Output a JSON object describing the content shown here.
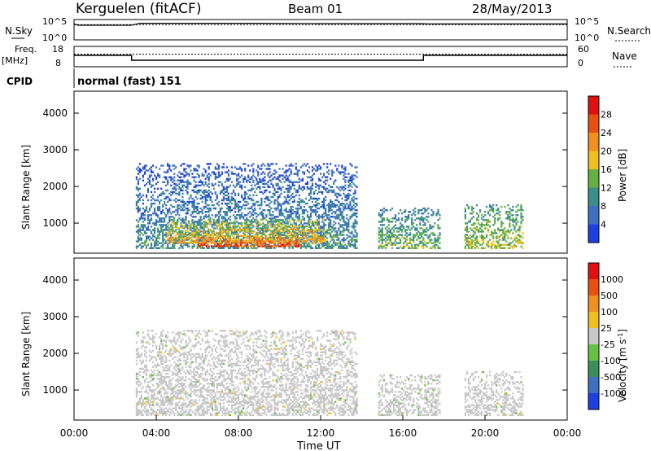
{
  "header": {
    "station": "Kerguelen (fitACF)",
    "beam": "Beam 01",
    "date": "28/May/2013"
  },
  "chart_data": [
    {
      "type": "line",
      "panel": "noise",
      "left_label": "N.Sky",
      "right_label": "N.Search",
      "left_ticks": [
        "10^5",
        "10^0"
      ],
      "right_ticks": [
        "10^5",
        "10^0"
      ],
      "x_hours": [
        0,
        0.2,
        2.8,
        3.2,
        9.0,
        12.0,
        16.9,
        17.2,
        24
      ],
      "n_sky_log10": [
        4.4,
        4.0,
        4.0,
        4.6,
        4.6,
        4.5,
        4.5,
        4.4,
        4.4
      ],
      "n_search_log10": [
        4.2,
        4.2,
        4.2,
        4.2,
        4.2,
        4.2,
        4.2,
        4.2,
        4.2
      ]
    },
    {
      "type": "line",
      "panel": "frequency",
      "left_label": "Freq.",
      "left_label_unit": "[MHz]",
      "right_label": "Nave",
      "left_ticks": [
        "18",
        "8"
      ],
      "right_ticks": [
        "60",
        "0"
      ],
      "freq_steps": [
        {
          "from_h": 0,
          "to_h": 2.8,
          "mhz": 14.0
        },
        {
          "from_h": 2.8,
          "to_h": 17.0,
          "mhz": 11.0
        },
        {
          "from_h": 17.0,
          "to_h": 24,
          "mhz": 14.0
        }
      ],
      "nave": 40,
      "cpid_label": "CPID",
      "cpid_text": "normal (fast) 151"
    },
    {
      "type": "heatmap",
      "panel": "power",
      "ylabel": "Slant Range [km]",
      "y_ticks": [
        "1000",
        "2000",
        "3000",
        "4000"
      ],
      "ylim": [
        180,
        4600
      ],
      "colorbar_label": "Power [dB]",
      "colorbar_ticks": [
        "4",
        "8",
        "12",
        "16",
        "20",
        "24",
        "28"
      ],
      "colorbar_colors": [
        "#1f3fe0",
        "#3f6fc0",
        "#3a8f8a",
        "#66b043",
        "#f0c020",
        "#f09020",
        "#e85010",
        "#e01010"
      ],
      "regions": [
        {
          "h0": 3.0,
          "h1": 13.8,
          "r0": 300,
          "r1": 2600,
          "level": 10
        },
        {
          "h0": 4.5,
          "h1": 12.2,
          "r0": 450,
          "r1": 1100,
          "level": 20
        },
        {
          "h0": 6.0,
          "h1": 11.0,
          "r0": 350,
          "r1": 600,
          "level": 27
        },
        {
          "h0": 14.8,
          "h1": 17.8,
          "r0": 300,
          "r1": 1400,
          "level": 14
        },
        {
          "h0": 19.0,
          "h1": 21.8,
          "r0": 300,
          "r1": 1500,
          "level": 16
        }
      ]
    },
    {
      "type": "heatmap",
      "panel": "velocity",
      "ylabel": "Slant Range [km]",
      "y_ticks": [
        "1000",
        "2000",
        "3000",
        "4000"
      ],
      "ylim": [
        180,
        4600
      ],
      "colorbar_label": "Velocity [m s",
      "colorbar_label_sup": "-1",
      "colorbar_label_end": "]",
      "colorbar_ticks": [
        "1000",
        "500",
        "100",
        "25",
        "-25",
        "-100",
        "-500",
        "-1000"
      ],
      "colorbar_colors": [
        "#1f3fe0",
        "#3f6fc0",
        "#3a8f5a",
        "#66c043",
        "#c8c8c8",
        "#f0c020",
        "#f09020",
        "#e85010",
        "#e01010"
      ],
      "regions": [
        {
          "h0": 3.0,
          "h1": 13.8,
          "r0": 300,
          "r1": 2600,
          "velocity": 0
        },
        {
          "h0": 14.8,
          "h1": 17.8,
          "r0": 300,
          "r1": 1400,
          "velocity": 10
        },
        {
          "h0": 19.0,
          "h1": 21.8,
          "r0": 300,
          "r1": 1500,
          "velocity": 5
        }
      ],
      "xlabel": "Time UT",
      "x_ticks": [
        "00:00",
        "04:00",
        "08:00",
        "12:00",
        "16:00",
        "20:00",
        "00:00"
      ]
    }
  ]
}
